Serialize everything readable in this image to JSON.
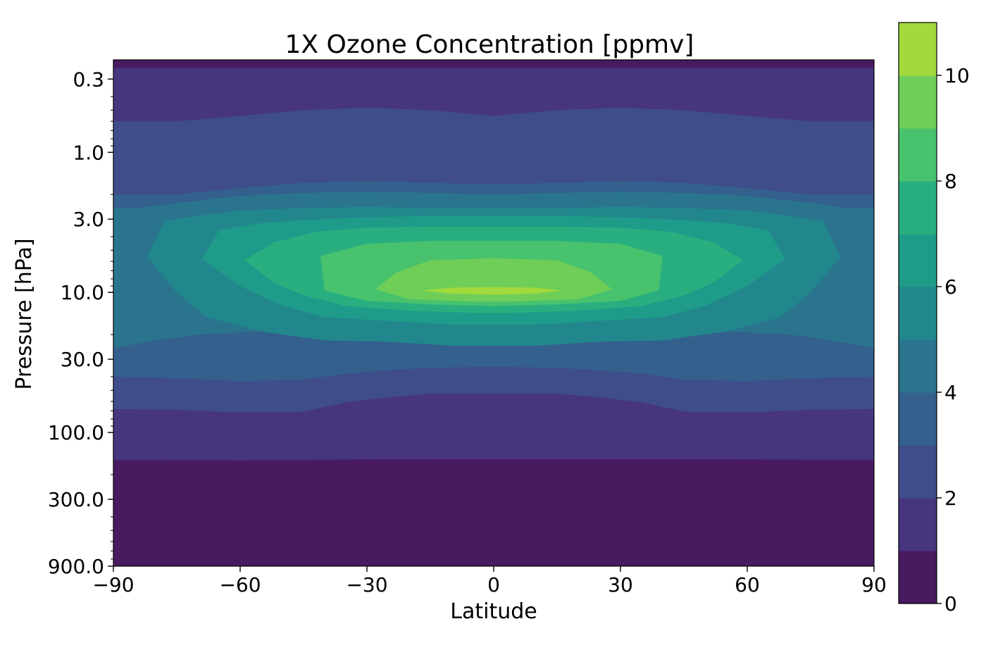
{
  "chart_data": {
    "type": "contourf",
    "title": "1X Ozone Concentration [ppmv]",
    "xlabel": "Latitude",
    "ylabel": "Pressure [hPa]",
    "xlim": [
      -90,
      90
    ],
    "ylim_hpa": [
      900,
      0.2
    ],
    "y_scale": "log",
    "y_inverted": true,
    "grid": false,
    "x_ticks": [
      -90,
      -60,
      -30,
      0,
      30,
      60,
      90
    ],
    "x_tick_labels": [
      "−90",
      "−60",
      "−30",
      "0",
      "30",
      "60",
      "90"
    ],
    "y_ticks": [
      0.3,
      1.0,
      3.0,
      10.0,
      30.0,
      100.0,
      300.0,
      900.0
    ],
    "y_tick_labels": [
      "0.3",
      "1.0",
      "3.0",
      "10.0",
      "30.0",
      "100.0",
      "300.0",
      "900.0"
    ],
    "colorbar": {
      "levels": [
        0,
        1,
        2,
        3,
        4,
        5,
        6,
        7,
        8,
        9,
        10,
        11
      ],
      "colors": [
        "#481a5f",
        "#473580",
        "#3f4d8a",
        "#34608d",
        "#2a748e",
        "#21878d",
        "#1f9b89",
        "#29af7f",
        "#48c26d",
        "#6fce57",
        "#a2d93c",
        "#e3e31b"
      ],
      "ticks": [
        0,
        2,
        4,
        6,
        8,
        10
      ],
      "tick_labels": [
        "0",
        "2",
        "4",
        "6",
        "8",
        "10"
      ]
    },
    "contours": [
      {
        "level": 1,
        "points": [
          [
            -90,
            157
          ],
          [
            -60,
            158
          ],
          [
            -30,
            156
          ],
          [
            0,
            155
          ],
          [
            30,
            155
          ],
          [
            60,
            156
          ],
          [
            90,
            157
          ],
          [
            90,
            0.25
          ],
          [
            60,
            0.25
          ],
          [
            30,
            0.25
          ],
          [
            0,
            0.25
          ],
          [
            -30,
            0.25
          ],
          [
            -60,
            0.25
          ],
          [
            -90,
            0.25
          ]
        ]
      },
      {
        "level": 2,
        "points": [
          [
            -90,
            68
          ],
          [
            -75,
            69
          ],
          [
            -60,
            72
          ],
          [
            -45,
            71
          ],
          [
            -35,
            61
          ],
          [
            -25,
            56
          ],
          [
            -15,
            53
          ],
          [
            0,
            53
          ],
          [
            15,
            53
          ],
          [
            25,
            56
          ],
          [
            35,
            61
          ],
          [
            45,
            71
          ],
          [
            60,
            72
          ],
          [
            75,
            69
          ],
          [
            90,
            68
          ],
          [
            90,
            0.6
          ],
          [
            75,
            0.6
          ],
          [
            60,
            0.55
          ],
          [
            45,
            0.5
          ],
          [
            30,
            0.48
          ],
          [
            15,
            0.5
          ],
          [
            0,
            0.55
          ],
          [
            -15,
            0.5
          ],
          [
            -30,
            0.48
          ],
          [
            -45,
            0.5
          ],
          [
            -60,
            0.55
          ],
          [
            -75,
            0.6
          ],
          [
            -90,
            0.6
          ]
        ]
      },
      {
        "level": 3,
        "points": [
          [
            -90,
            40
          ],
          [
            -75,
            41
          ],
          [
            -60,
            43
          ],
          [
            -45,
            42
          ],
          [
            -35,
            38
          ],
          [
            -25,
            36
          ],
          [
            -15,
            34.5
          ],
          [
            0,
            34
          ],
          [
            15,
            34.5
          ],
          [
            25,
            36
          ],
          [
            35,
            38
          ],
          [
            45,
            42
          ],
          [
            60,
            43
          ],
          [
            75,
            41
          ],
          [
            90,
            40
          ],
          [
            90,
            2.0
          ],
          [
            75,
            2.0
          ],
          [
            60,
            1.8
          ],
          [
            45,
            1.65
          ],
          [
            30,
            1.6
          ],
          [
            15,
            1.65
          ],
          [
            0,
            1.7
          ],
          [
            -15,
            1.65
          ],
          [
            -30,
            1.6
          ],
          [
            -45,
            1.65
          ],
          [
            -60,
            1.8
          ],
          [
            -75,
            2.0
          ],
          [
            -90,
            2.0
          ]
        ]
      },
      {
        "level": 4,
        "points": [
          [
            -90,
            25
          ],
          [
            -80,
            22
          ],
          [
            -70,
            20
          ],
          [
            -55,
            19
          ],
          [
            -40,
            18
          ],
          [
            -25,
            18.5
          ],
          [
            -10,
            20
          ],
          [
            0,
            20
          ],
          [
            10,
            20
          ],
          [
            25,
            18.5
          ],
          [
            40,
            18
          ],
          [
            55,
            19
          ],
          [
            70,
            20
          ],
          [
            80,
            22
          ],
          [
            90,
            25
          ],
          [
            90,
            2.5
          ],
          [
            84,
            2.5
          ],
          [
            75,
            2.3
          ],
          [
            60,
            2.05
          ],
          [
            45,
            1.95
          ],
          [
            30,
            1.9
          ],
          [
            15,
            1.95
          ],
          [
            0,
            2.0
          ],
          [
            -15,
            1.95
          ],
          [
            -30,
            1.9
          ],
          [
            -45,
            1.95
          ],
          [
            -60,
            2.05
          ],
          [
            -75,
            2.3
          ],
          [
            -84,
            2.5
          ],
          [
            -90,
            2.5
          ]
        ]
      },
      {
        "level": 5,
        "points": [
          [
            -82,
            5.6
          ],
          [
            -75,
            10
          ],
          [
            -68,
            15
          ],
          [
            -55,
            19
          ],
          [
            -40,
            22
          ],
          [
            -25,
            22.5
          ],
          [
            -10,
            24
          ],
          [
            0,
            24
          ],
          [
            10,
            24
          ],
          [
            25,
            22.5
          ],
          [
            40,
            22
          ],
          [
            55,
            19
          ],
          [
            68,
            15
          ],
          [
            75,
            10
          ],
          [
            82,
            5.6
          ],
          [
            78,
            3.1
          ],
          [
            72,
            2.9
          ],
          [
            60,
            2.6
          ],
          [
            45,
            2.5
          ],
          [
            30,
            2.45
          ],
          [
            15,
            2.5
          ],
          [
            0,
            2.5
          ],
          [
            -15,
            2.5
          ],
          [
            -30,
            2.45
          ],
          [
            -45,
            2.5
          ],
          [
            -60,
            2.6
          ],
          [
            -72,
            2.9
          ],
          [
            -78,
            3.1
          ]
        ]
      },
      {
        "level": 6,
        "points": [
          [
            -69,
            5.8
          ],
          [
            -60,
            9
          ],
          [
            -50,
            12.5
          ],
          [
            -40,
            15
          ],
          [
            -25,
            16
          ],
          [
            -10,
            17
          ],
          [
            0,
            17
          ],
          [
            10,
            17
          ],
          [
            25,
            16
          ],
          [
            40,
            15
          ],
          [
            50,
            12.5
          ],
          [
            60,
            9
          ],
          [
            69,
            5.8
          ],
          [
            65,
            3.6
          ],
          [
            55,
            3.2
          ],
          [
            45,
            3.05
          ],
          [
            30,
            2.9
          ],
          [
            15,
            2.85
          ],
          [
            0,
            2.85
          ],
          [
            -15,
            2.85
          ],
          [
            -30,
            2.9
          ],
          [
            -45,
            3.05
          ],
          [
            -55,
            3.2
          ],
          [
            -65,
            3.6
          ]
        ]
      },
      {
        "level": 7,
        "points": [
          [
            -59,
            5.9
          ],
          [
            -52,
            8.5
          ],
          [
            -45,
            10.5
          ],
          [
            -35,
            12.5
          ],
          [
            -20,
            13.5
          ],
          [
            -5,
            14
          ],
          [
            0,
            14
          ],
          [
            5,
            14
          ],
          [
            20,
            13.5
          ],
          [
            35,
            12.5
          ],
          [
            45,
            10.5
          ],
          [
            52,
            8.5
          ],
          [
            59,
            5.9
          ],
          [
            52,
            4.4
          ],
          [
            42,
            3.7
          ],
          [
            30,
            3.45
          ],
          [
            15,
            3.4
          ],
          [
            0,
            3.4
          ],
          [
            -15,
            3.4
          ],
          [
            -30,
            3.45
          ],
          [
            -42,
            3.7
          ],
          [
            -52,
            4.4
          ]
        ]
      },
      {
        "level": 8,
        "points": [
          [
            -41,
            5.5
          ],
          [
            -40,
            9.7
          ],
          [
            -30,
            11.5
          ],
          [
            -15,
            12.2
          ],
          [
            0,
            12.5
          ],
          [
            15,
            12.2
          ],
          [
            30,
            11.5
          ],
          [
            39,
            9.7
          ],
          [
            40,
            5.5
          ],
          [
            30,
            4.5
          ],
          [
            15,
            4.3
          ],
          [
            0,
            4.3
          ],
          [
            -15,
            4.3
          ],
          [
            -30,
            4.5
          ]
        ]
      },
      {
        "level": 9,
        "points": [
          [
            -28,
            9.5
          ],
          [
            -20,
            11.2
          ],
          [
            -5,
            11.6
          ],
          [
            0,
            11.6
          ],
          [
            5,
            11.6
          ],
          [
            20,
            11.2
          ],
          [
            28,
            9.5
          ],
          [
            23,
            7.2
          ],
          [
            15,
            5.9
          ],
          [
            0,
            5.7
          ],
          [
            -15,
            5.9
          ],
          [
            -23,
            7.2
          ]
        ]
      },
      {
        "level": 10,
        "points": [
          [
            -17,
            9.7
          ],
          [
            -10,
            10.2
          ],
          [
            0,
            10.4
          ],
          [
            10,
            10.2
          ],
          [
            16,
            9.7
          ],
          [
            10,
            9.25
          ],
          [
            0,
            9.15
          ],
          [
            -10,
            9.25
          ]
        ]
      }
    ]
  }
}
